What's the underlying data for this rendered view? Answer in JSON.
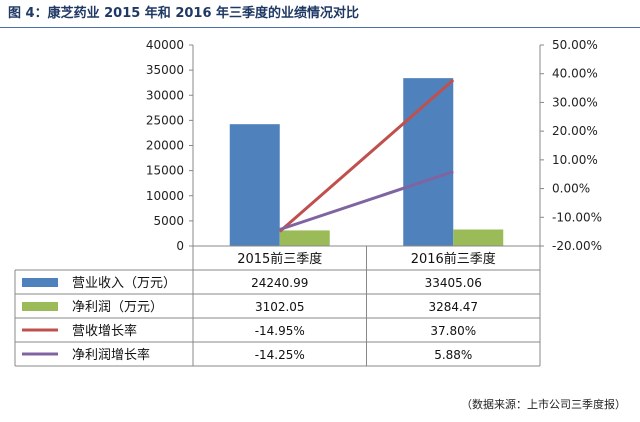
{
  "title": "图 4：康芝药业 2015 年和 2016 年三季度的业绩情况对比",
  "source_note": "（数据来源：上市公司三季度报）",
  "colors": {
    "revenue": "#4f81bd",
    "profit": "#9bbb59",
    "revenue_growth": "#c0504d",
    "profit_growth": "#8064a2",
    "title": "#1f3864"
  },
  "chart_data": {
    "type": "bar",
    "categories": [
      "2015前三季度",
      "2016前三季度"
    ],
    "y_left": {
      "min": 0,
      "max": 40000,
      "step": 5000,
      "ticks": [
        "0",
        "5000",
        "10000",
        "15000",
        "20000",
        "25000",
        "30000",
        "35000",
        "40000"
      ]
    },
    "y_right": {
      "min": -20,
      "max": 50,
      "step": 10,
      "ticks": [
        "-20.00%",
        "-10.00%",
        "0.00%",
        "10.00%",
        "20.00%",
        "30.00%",
        "40.00%",
        "50.00%"
      ]
    },
    "series": [
      {
        "name": "营业收入（万元）",
        "type": "bar",
        "axis": "left",
        "values": [
          24240.99,
          33405.06
        ],
        "labels": [
          "24240.99",
          "33405.06"
        ]
      },
      {
        "name": "净利润（万元）",
        "type": "bar",
        "axis": "left",
        "values": [
          3102.05,
          3284.47
        ],
        "labels": [
          "3102.05",
          "3284.47"
        ]
      },
      {
        "name": "营收增长率",
        "type": "line",
        "axis": "right",
        "values": [
          -14.95,
          37.8
        ],
        "labels": [
          "-14.95%",
          "37.80%"
        ]
      },
      {
        "name": "净利润增长率",
        "type": "line",
        "axis": "right",
        "values": [
          -14.25,
          5.88
        ],
        "labels": [
          "-14.25%",
          "5.88%"
        ]
      }
    ],
    "grid": false,
    "legend": "data-table"
  }
}
